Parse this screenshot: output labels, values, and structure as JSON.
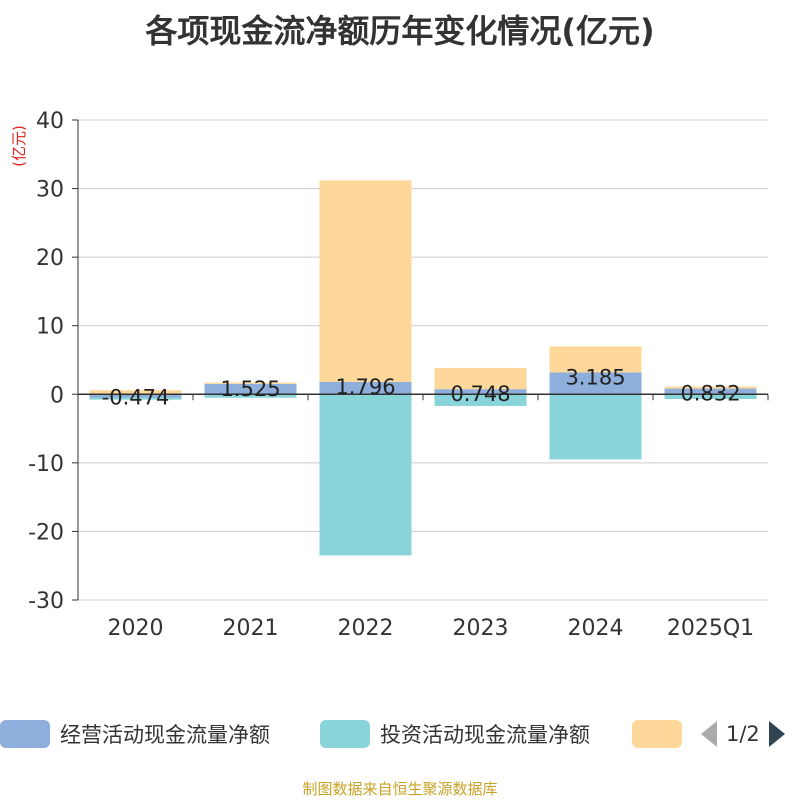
{
  "title": "各项现金流净额历年变化情况(亿元)",
  "source_note": "制图数据来自恒生聚源数据库",
  "legend": {
    "items": [
      {
        "label": "经营活动现金流量净额",
        "color": "#8eaedb"
      },
      {
        "label": "投资活动现金流量净额",
        "color": "#88d4d8"
      },
      {
        "label": "",
        "color": "#fed89a"
      }
    ],
    "page_indicator": "1/2",
    "prev_icon": "triangle-left-icon",
    "next_icon": "triangle-right-icon"
  },
  "chart_data": {
    "type": "bar",
    "stacked": true,
    "title": "各项现金流净额历年变化情况(亿元)",
    "ylabel": "(亿元)",
    "ylim": [
      -30,
      40
    ],
    "yticks": [
      40,
      30,
      20,
      10,
      0,
      -10,
      -20,
      -30
    ],
    "categories": [
      "2020",
      "2021",
      "2022",
      "2023",
      "2024",
      "2025Q1"
    ],
    "grid": true,
    "legend_position": "bottom",
    "series": [
      {
        "name": "经营活动现金流量净额",
        "color": "#8eaedb",
        "values": [
          -0.474,
          1.525,
          1.796,
          0.748,
          3.185,
          0.832
        ],
        "labels": [
          "-0.474",
          "1.525",
          "1.796",
          "0.748",
          "3.185",
          "0.832"
        ]
      },
      {
        "name": "投资活动现金流量净额",
        "color": "#88d4d8",
        "values": [
          -0.3,
          -0.5,
          -23.5,
          -1.7,
          -9.5,
          -0.7
        ]
      },
      {
        "name": "",
        "color": "#fed89a",
        "values": [
          0.6,
          0.2,
          29.4,
          3.1,
          3.8,
          0.3
        ]
      }
    ]
  }
}
